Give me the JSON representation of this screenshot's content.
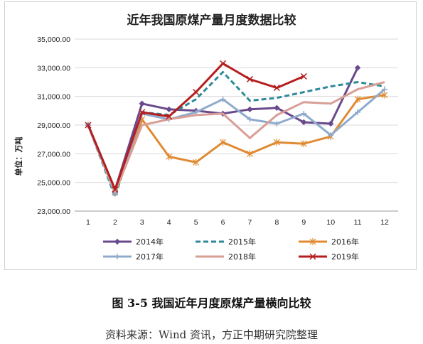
{
  "figure": {
    "caption": "图 3-5  我国近年月度原煤产量横向比较",
    "source": "资料来源：Wind 资讯，方正中期研究院整理"
  },
  "chart_data": {
    "type": "line",
    "title": "近年我国原煤产量月度数据比较",
    "xlabel": "",
    "ylabel": "单位：万吨",
    "x": [
      1,
      2,
      3,
      4,
      5,
      6,
      7,
      8,
      9,
      10,
      11,
      12
    ],
    "ylim": [
      23000,
      35000
    ],
    "yticks": [
      "23,000.00",
      "25,000.00",
      "27,000.00",
      "29,000.00",
      "31,000.00",
      "33,000.00",
      "35,000.00"
    ],
    "ytick_values": [
      23000,
      25000,
      27000,
      29000,
      31000,
      33000,
      35000
    ],
    "grid": "horizontal",
    "legend_position": "bottom",
    "series": [
      {
        "name": "2014年",
        "color": "#6a4a8c",
        "dash": "solid",
        "marker": "diamond",
        "values": [
          29000,
          24500,
          30500,
          30100,
          30000,
          29800,
          30100,
          30200,
          29200,
          29100,
          33000,
          null
        ]
      },
      {
        "name": "2015年",
        "color": "#2e8a99",
        "dash": "dashed",
        "marker": "none",
        "values": [
          29000,
          24000,
          29900,
          29700,
          30800,
          32700,
          30700,
          30900,
          31300,
          31700,
          32000,
          31700
        ]
      },
      {
        "name": "2016年",
        "color": "#e08a33",
        "dash": "solid",
        "marker": "star",
        "values": [
          29000,
          24300,
          29400,
          26800,
          26400,
          27800,
          27000,
          27800,
          27700,
          28200,
          30800,
          31100
        ]
      },
      {
        "name": "2017年",
        "color": "#8fabcc",
        "dash": "solid",
        "marker": "plus",
        "values": [
          29000,
          24200,
          29800,
          29400,
          29900,
          30800,
          29400,
          29100,
          29800,
          28300,
          29900,
          31500
        ]
      },
      {
        "name": "2018年",
        "color": "#d99e96",
        "dash": "solid",
        "marker": "none",
        "values": [
          29000,
          24300,
          29000,
          29400,
          29700,
          29800,
          28100,
          29700,
          30600,
          30500,
          31500,
          32000
        ]
      },
      {
        "name": "2019年",
        "color": "#b51e1e",
        "dash": "solid",
        "marker": "x",
        "values": [
          29000,
          24500,
          29900,
          29600,
          31300,
          33300,
          32200,
          31600,
          32400,
          null,
          null,
          null
        ]
      }
    ]
  }
}
